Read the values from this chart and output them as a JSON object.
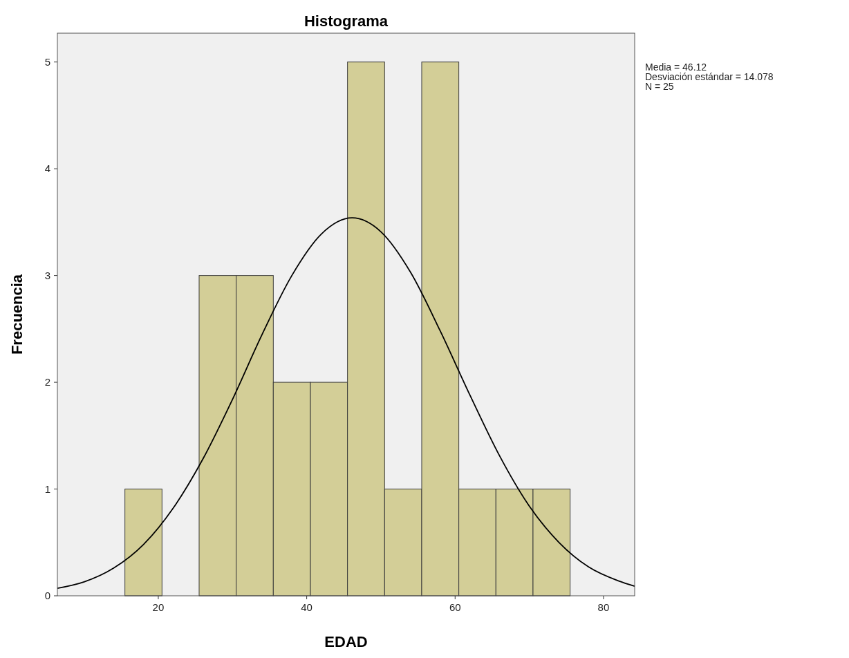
{
  "chart_data": {
    "type": "histogram",
    "title": "Histograma",
    "xlabel": "EDAD",
    "ylabel": "Frecuencia",
    "bins": [
      15.5,
      20.5,
      25.5,
      30.5,
      35.5,
      40.5,
      45.5,
      50.5,
      55.5,
      60.5,
      65.5,
      70.5,
      75.5
    ],
    "values": [
      1,
      0,
      3,
      3,
      2,
      2,
      5,
      1,
      5,
      1,
      1,
      1
    ],
    "color": "#d3ce97",
    "series": [
      {
        "type": "line",
        "color": "#000000",
        "x": [
          6.4,
          10,
          14,
          18,
          22,
          26,
          30,
          34,
          38,
          42,
          46.12,
          50,
          54,
          58,
          62,
          66,
          70,
          74,
          78,
          82,
          84.2
        ],
        "values": [
          0.07,
          0.13,
          0.26,
          0.48,
          0.82,
          1.28,
          1.84,
          2.45,
          3.0,
          3.39,
          3.54,
          3.41,
          3.03,
          2.48,
          1.88,
          1.31,
          0.84,
          0.5,
          0.27,
          0.14,
          0.09
        ]
      }
    ],
    "xlim": [
      6.4,
      84.2
    ],
    "xticks": [
      20,
      40,
      60,
      80
    ],
    "ylim": [
      0,
      5.27
    ],
    "yticks": [
      0,
      1,
      2,
      3,
      4,
      5
    ],
    "grid": false,
    "annotations": [
      "Media = 46.12",
      "Desviación estándar = 14.078",
      "N = 25"
    ]
  }
}
